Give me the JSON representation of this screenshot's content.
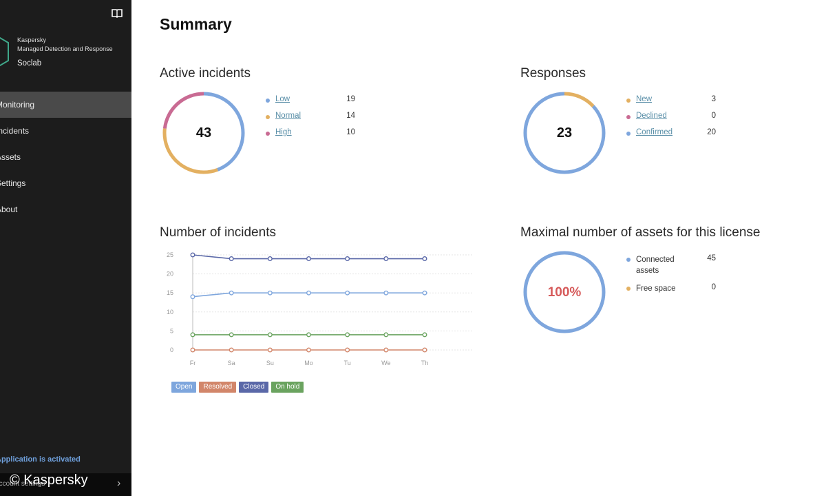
{
  "sidebar": {
    "brand": {
      "company": "Kaspersky",
      "product": "Managed Detection and Response",
      "tenant": "Soclab"
    },
    "nav": [
      {
        "label": "Monitoring",
        "active": true
      },
      {
        "label": "Incidents"
      },
      {
        "label": "Assets"
      },
      {
        "label": "Settings"
      },
      {
        "label": "About"
      }
    ],
    "status": "Application is activated",
    "account": "Account settings"
  },
  "watermark": "© Kaspersky",
  "page": {
    "title": "Summary"
  },
  "active_incidents": {
    "title": "Active incidents",
    "total": "43",
    "items": [
      {
        "label": "Low",
        "value": 19,
        "color": "#7ea6dd"
      },
      {
        "label": "Normal",
        "value": 14,
        "color": "#e3b061"
      },
      {
        "label": "High",
        "value": 10,
        "color": "#c96b93"
      }
    ]
  },
  "responses": {
    "title": "Responses",
    "total": "23",
    "items": [
      {
        "label": "New",
        "value": 3,
        "color": "#e3b061"
      },
      {
        "label": "Declined",
        "value": 0,
        "color": "#c96b93"
      },
      {
        "label": "Confirmed",
        "value": 20,
        "color": "#7ea6dd"
      }
    ]
  },
  "incidents_chart": {
    "title": "Number of incidents",
    "legend": [
      {
        "label": "Open",
        "color": "#7ea6dd"
      },
      {
        "label": "Resolved",
        "color": "#d2866a"
      },
      {
        "label": "Closed",
        "color": "#5a68a8"
      },
      {
        "label": "On hold",
        "color": "#6aa35f"
      }
    ]
  },
  "chart_data": {
    "type": "line",
    "title": "Number of incidents",
    "x": [
      "Fr",
      "Sa",
      "Su",
      "Mo",
      "Tu",
      "We",
      "Th"
    ],
    "ylim": [
      0,
      25
    ],
    "yticks": [
      0,
      5,
      10,
      15,
      20,
      25
    ],
    "grid": true,
    "legend_position": "bottom-left",
    "series": [
      {
        "name": "Open",
        "color": "#7ea6dd",
        "values": [
          14,
          15,
          15,
          15,
          15,
          15,
          15
        ]
      },
      {
        "name": "Resolved",
        "color": "#d2866a",
        "values": [
          0,
          0,
          0,
          0,
          0,
          0,
          0
        ]
      },
      {
        "name": "Closed",
        "color": "#5a68a8",
        "values": [
          25,
          24,
          24,
          24,
          24,
          24,
          24
        ]
      },
      {
        "name": "On hold",
        "color": "#6aa35f",
        "values": [
          4,
          4,
          4,
          4,
          4,
          4,
          4
        ]
      }
    ]
  },
  "assets": {
    "title": "Maximal number of assets for this license",
    "percent_label": "100%",
    "percent_color": "#d65a5a",
    "items": [
      {
        "label": "Connected assets",
        "value": 45,
        "color": "#7ea6dd"
      },
      {
        "label": "Free space",
        "value": 0,
        "color": "#e3b061"
      }
    ]
  }
}
